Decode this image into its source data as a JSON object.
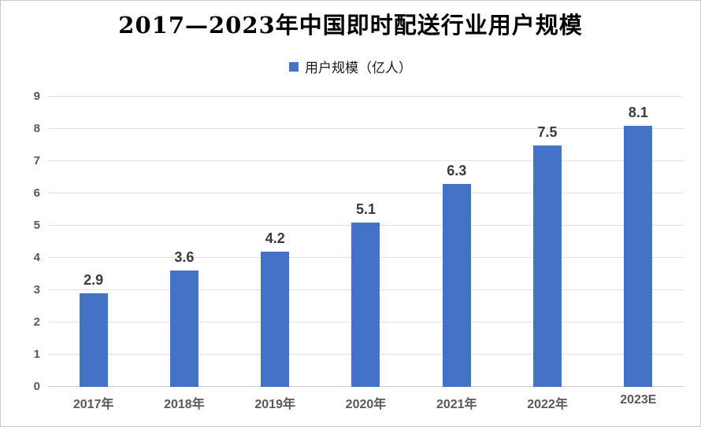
{
  "title": "2017—2023年中国即时配送行业用户规模",
  "legend": {
    "label": "用户规模（亿人）",
    "swatch_color": "#4472C4"
  },
  "chart_data": {
    "type": "bar",
    "title": "2017—2023年中国即时配送行业用户规模",
    "categories": [
      "2017年",
      "2018年",
      "2019年",
      "2020年",
      "2021年",
      "2022年",
      "2023E"
    ],
    "values": [
      2.9,
      3.6,
      4.2,
      5.1,
      6.3,
      7.5,
      8.1
    ],
    "series_name": "用户规模（亿人）",
    "xlabel": "",
    "ylabel": "",
    "ylim": [
      0,
      9
    ],
    "y_ticks": [
      0,
      1,
      2,
      3,
      4,
      5,
      6,
      7,
      8,
      9
    ],
    "grid": true,
    "legend_position": "top",
    "data_labels": true,
    "bar_color": "#4472C4",
    "gridline_color": "#e2e2e2",
    "axis_line_color": "#cccccc",
    "tick_label_color": "#595959",
    "value_label_color": "#3b3b3b"
  }
}
